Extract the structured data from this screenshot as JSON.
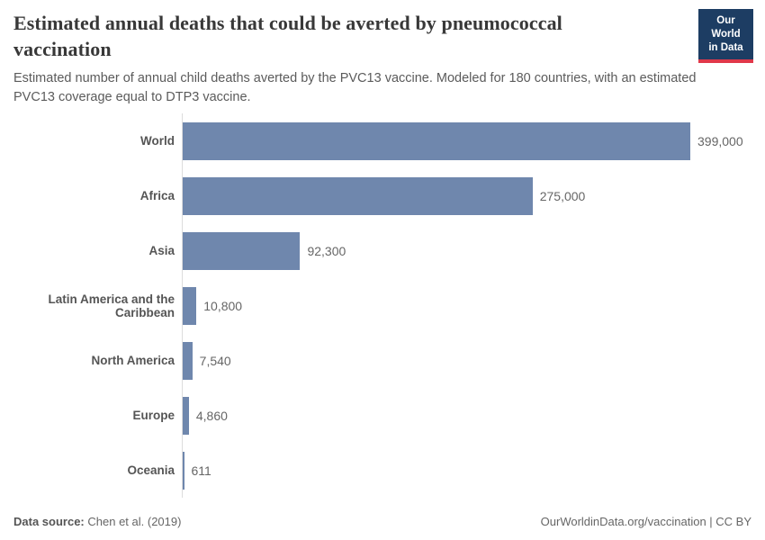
{
  "header": {
    "title": "Estimated annual deaths that could be averted by pneumococcal vaccination",
    "subtitle": "Estimated number of annual child deaths averted by the PVC13 vaccine. Modeled for 180 countries, with an estimated PVC13 coverage equal to DTP3 vaccine."
  },
  "logo": {
    "line1": "Our World",
    "line2": "in Data",
    "bg_color": "#1d3d63",
    "accent_color": "#e0384a"
  },
  "chart_data": {
    "type": "bar",
    "orientation": "horizontal",
    "title": "Estimated annual deaths that could be averted by pneumococcal vaccination",
    "categories": [
      "World",
      "Africa",
      "Asia",
      "Latin America and the Caribbean",
      "North America",
      "Europe",
      "Oceania"
    ],
    "values": [
      399000,
      275000,
      92300,
      10800,
      7540,
      4860,
      611
    ],
    "value_labels": [
      "399,000",
      "275,000",
      "92,300",
      "10,800",
      "7,540",
      "4,860",
      "611"
    ],
    "bar_color": "#6f87ad",
    "axis_line_color": "#dcdcdc",
    "xlim": [
      0,
      399000
    ],
    "grid": false,
    "legend": "none"
  },
  "footer": {
    "source_label": "Data source:",
    "source_value": "Chen et al. (2019)",
    "attribution": "OurWorldinData.org/vaccination | CC BY"
  }
}
